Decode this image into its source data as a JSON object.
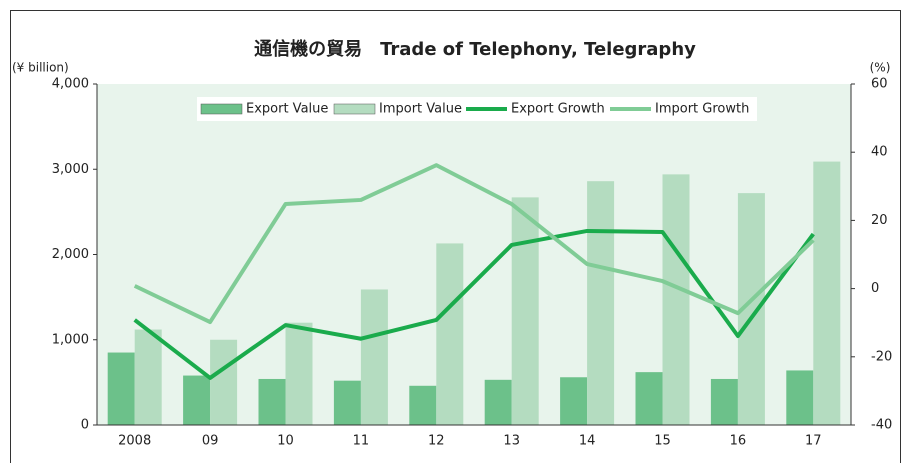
{
  "chart_data": {
    "type": "combo",
    "title": "通信機の貿易　Trade of Telephony, Telegraphy",
    "y_label": "(¥ billion)",
    "y2_label": "(%)",
    "categories": [
      "2008",
      "09",
      "10",
      "11",
      "12",
      "13",
      "14",
      "15",
      "16",
      "17"
    ],
    "series": [
      {
        "name": "Export Value",
        "type": "bar",
        "color": "#6cc18a",
        "values": [
          850,
          580,
          540,
          520,
          460,
          530,
          560,
          620,
          540,
          640
        ]
      },
      {
        "name": "Import Value",
        "type": "bar",
        "color": "#b4dcc0",
        "values": [
          1120,
          1000,
          1200,
          1590,
          2130,
          2670,
          2860,
          2940,
          2720,
          3090
        ]
      },
      {
        "name": "Export Growth",
        "type": "line",
        "axis": "y2",
        "color": "#1aab4c",
        "values": [
          -9.2,
          -26.2,
          -10.7,
          -14.7,
          -9.2,
          12.8,
          16.9,
          16.6,
          -13.9,
          16
        ]
      },
      {
        "name": "Import Growth",
        "type": "line",
        "axis": "y2",
        "color": "#80cc96",
        "values": [
          0.8,
          -9.8,
          24.8,
          26,
          36.2,
          24.8,
          7.2,
          2.2,
          -7.2,
          14.2
        ]
      }
    ],
    "ylim": [
      0,
      4000
    ],
    "yticks": [
      0,
      {
        "value": 1000,
        "label": "1,000"
      },
      {
        "value": 2000,
        "label": "2,000"
      },
      {
        "value": 3000,
        "label": "3,000"
      },
      {
        "value": 4000,
        "label": "4,000"
      }
    ],
    "y2lim": [
      -40,
      60
    ],
    "y2ticks": [
      -40,
      -20,
      0,
      20,
      40,
      60
    ],
    "legend": "top"
  }
}
